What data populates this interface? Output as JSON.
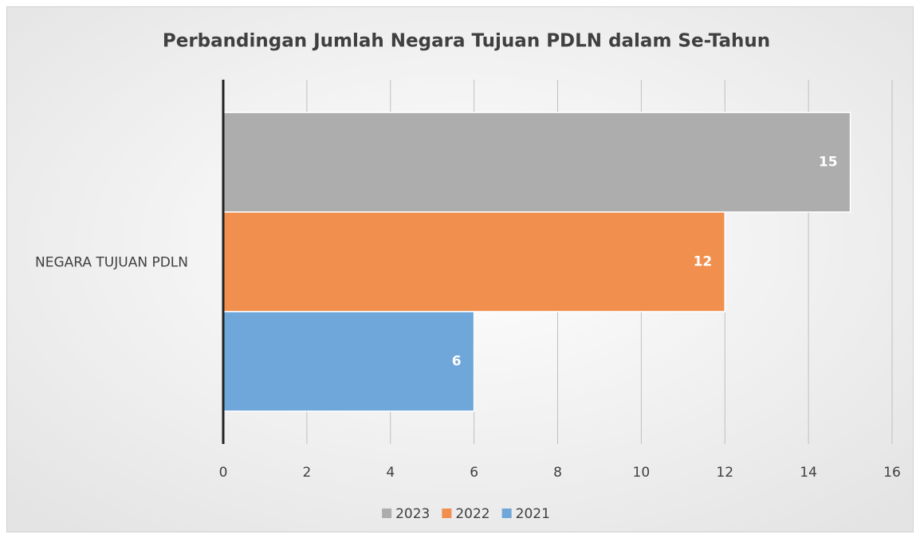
{
  "chart_data": {
    "type": "hbar",
    "title": "Perbandingan Jumlah Negara Tujuan PDLN dalam Se-Tahun",
    "categories": [
      "NEGARA TUJUAN PDLN"
    ],
    "series": [
      {
        "name": "2023",
        "color": "#adadad",
        "values": [
          15
        ]
      },
      {
        "name": "2022",
        "color": "#f08f4e",
        "values": [
          12
        ]
      },
      {
        "name": "2021",
        "color": "#70a7da",
        "values": [
          6
        ]
      }
    ],
    "xlim": [
      0,
      16
    ],
    "xticks": [
      0,
      2,
      4,
      6,
      8,
      10,
      12,
      14,
      16
    ],
    "grid": true,
    "legend": "bottom"
  }
}
